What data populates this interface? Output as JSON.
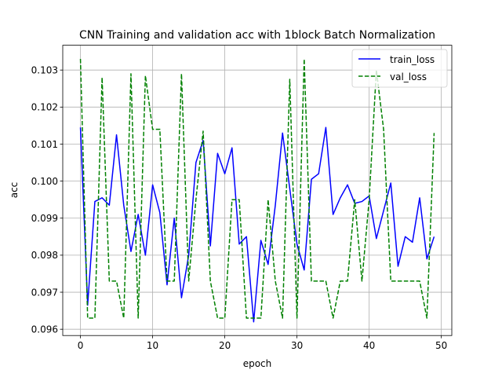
{
  "chart_data": {
    "type": "line",
    "title": "CNN Training and validation acc with 1block Batch Normalization",
    "xlabel": "epoch",
    "ylabel": "acc",
    "xlim": [
      -2.45,
      51.45
    ],
    "ylim": [
      0.09583,
      0.10367
    ],
    "xticks": [
      0,
      10,
      20,
      30,
      40,
      50
    ],
    "yticks": [
      0.096,
      0.097,
      0.098,
      0.099,
      0.1,
      0.101,
      0.102,
      0.103
    ],
    "ytick_labels": [
      "0.096",
      "0.097",
      "0.098",
      "0.099",
      "0.100",
      "0.101",
      "0.102",
      "0.103"
    ],
    "grid": true,
    "legend": "top-right",
    "x": [
      0,
      1,
      2,
      3,
      4,
      5,
      6,
      7,
      8,
      9,
      10,
      11,
      12,
      13,
      14,
      15,
      16,
      17,
      18,
      19,
      20,
      21,
      22,
      23,
      24,
      25,
      26,
      27,
      28,
      29,
      30,
      31,
      32,
      33,
      34,
      35,
      36,
      37,
      38,
      39,
      40,
      41,
      42,
      43,
      44,
      45,
      46,
      47,
      48,
      49
    ],
    "series": [
      {
        "name": "train_loss",
        "color": "#0000ff",
        "dash": "solid",
        "values": [
          0.10145,
          0.09665,
          0.09945,
          0.09955,
          0.09935,
          0.10125,
          0.09935,
          0.0981,
          0.0991,
          0.098,
          0.0999,
          0.09915,
          0.0972,
          0.099,
          0.09685,
          0.098,
          0.1005,
          0.1011,
          0.09825,
          0.10075,
          0.1002,
          0.1009,
          0.0983,
          0.0985,
          0.0962,
          0.0984,
          0.09775,
          0.09935,
          0.1013,
          0.0998,
          0.0983,
          0.0976,
          0.10005,
          0.1002,
          0.10145,
          0.0991,
          0.09955,
          0.0999,
          0.0994,
          0.09945,
          0.0996,
          0.09845,
          0.0992,
          0.09995,
          0.0977,
          0.0985,
          0.09835,
          0.09955,
          0.0979,
          0.0985
        ]
      },
      {
        "name": "val_loss",
        "color": "#008000",
        "dash": "dashed",
        "values": [
          0.1033,
          0.0963,
          0.0963,
          0.1028,
          0.0973,
          0.0973,
          0.0963,
          0.1029,
          0.0963,
          0.10285,
          0.1014,
          0.1014,
          0.0973,
          0.0973,
          0.1029,
          0.0973,
          0.0995,
          0.10135,
          0.0973,
          0.0963,
          0.0963,
          0.0995,
          0.0995,
          0.0963,
          0.0963,
          0.0963,
          0.0995,
          0.0973,
          0.0963,
          0.10275,
          0.0963,
          0.1033,
          0.0973,
          0.0973,
          0.0973,
          0.0963,
          0.0973,
          0.0973,
          0.0995,
          0.0973,
          0.0995,
          0.103,
          0.1014,
          0.0973,
          0.0973,
          0.0973,
          0.0973,
          0.0973,
          0.0963,
          0.1013
        ]
      }
    ]
  }
}
